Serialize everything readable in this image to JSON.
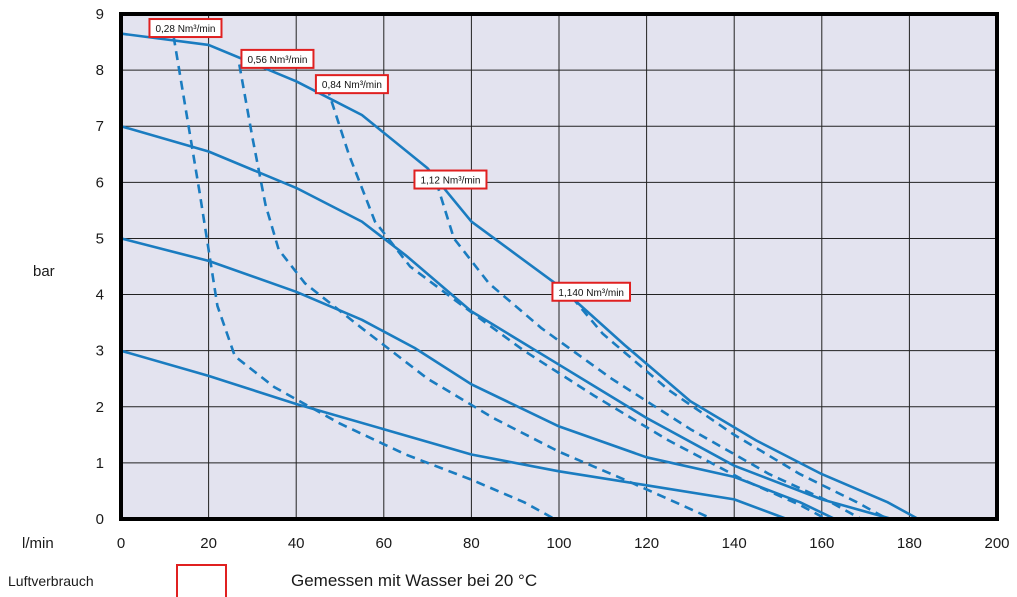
{
  "chart_data": {
    "type": "line",
    "title": "",
    "xlabel": "l/min",
    "ylabel": "bar",
    "xlim": [
      0,
      200
    ],
    "ylim": [
      0,
      9
    ],
    "xticks": [
      "0",
      "20",
      "40",
      "60",
      "80",
      "100",
      "120",
      "140",
      "160",
      "180",
      "200"
    ],
    "yticks": [
      "0",
      "1",
      "2",
      "3",
      "4",
      "5",
      "6",
      "7",
      "8",
      "9"
    ],
    "grid": true,
    "plot_background": "#e3e3ef",
    "line_color": "#1a7cc0",
    "label_border_color": "#e02020",
    "pressure_curves": [
      {
        "points": [
          [
            0,
            8.65
          ],
          [
            20,
            8.45
          ],
          [
            40,
            7.8
          ],
          [
            55,
            7.2
          ],
          [
            70,
            6.25
          ],
          [
            80,
            5.3
          ],
          [
            100,
            4.15
          ],
          [
            115,
            3.1
          ],
          [
            130,
            2.1
          ],
          [
            145,
            1.4
          ],
          [
            160,
            0.8
          ],
          [
            175,
            0.3
          ],
          [
            182,
            0
          ]
        ]
      },
      {
        "points": [
          [
            0,
            7.0
          ],
          [
            20,
            6.55
          ],
          [
            40,
            5.9
          ],
          [
            55,
            5.3
          ],
          [
            65,
            4.7
          ],
          [
            80,
            3.7
          ],
          [
            100,
            2.75
          ],
          [
            120,
            1.8
          ],
          [
            140,
            0.95
          ],
          [
            160,
            0.35
          ],
          [
            176,
            0
          ]
        ]
      },
      {
        "points": [
          [
            0,
            5.0
          ],
          [
            20,
            4.6
          ],
          [
            40,
            4.05
          ],
          [
            55,
            3.55
          ],
          [
            67,
            3.05
          ],
          [
            80,
            2.4
          ],
          [
            100,
            1.65
          ],
          [
            120,
            1.1
          ],
          [
            140,
            0.75
          ],
          [
            155,
            0.3
          ],
          [
            163,
            0
          ]
        ]
      },
      {
        "points": [
          [
            0,
            3.0
          ],
          [
            20,
            2.55
          ],
          [
            40,
            2.05
          ],
          [
            60,
            1.6
          ],
          [
            80,
            1.15
          ],
          [
            100,
            0.85
          ],
          [
            120,
            0.6
          ],
          [
            140,
            0.35
          ],
          [
            152,
            0
          ]
        ]
      }
    ],
    "air_curves": [
      {
        "label": "0,28 Nm³/min",
        "points": [
          [
            12,
            8.6
          ],
          [
            15,
            7.2
          ],
          [
            18,
            5.8
          ],
          [
            20,
            4.8
          ],
          [
            22,
            3.8
          ],
          [
            26,
            2.9
          ],
          [
            35,
            2.35
          ],
          [
            50,
            1.7
          ],
          [
            65,
            1.15
          ],
          [
            80,
            0.7
          ],
          [
            92,
            0.3
          ],
          [
            99,
            0
          ]
        ]
      },
      {
        "label": "0,56 Nm³/min",
        "points": [
          [
            27,
            8.1
          ],
          [
            30,
            6.8
          ],
          [
            33,
            5.6
          ],
          [
            36,
            4.8
          ],
          [
            42,
            4.2
          ],
          [
            55,
            3.4
          ],
          [
            70,
            2.5
          ],
          [
            85,
            1.8
          ],
          [
            100,
            1.2
          ],
          [
            115,
            0.7
          ],
          [
            128,
            0.25
          ],
          [
            135,
            0
          ]
        ]
      },
      {
        "label": "0,84 Nm³/min",
        "points": [
          [
            47,
            7.7
          ],
          [
            52,
            6.5
          ],
          [
            58,
            5.3
          ],
          [
            66,
            4.5
          ],
          [
            78,
            3.8
          ],
          [
            92,
            3.0
          ],
          [
            108,
            2.2
          ],
          [
            125,
            1.4
          ],
          [
            142,
            0.7
          ],
          [
            155,
            0.25
          ],
          [
            161,
            0
          ]
        ]
      },
      {
        "label": "1,12 Nm³/min",
        "points": [
          [
            72,
            6.0
          ],
          [
            76,
            5.0
          ],
          [
            84,
            4.2
          ],
          [
            96,
            3.4
          ],
          [
            112,
            2.5
          ],
          [
            130,
            1.6
          ],
          [
            148,
            0.8
          ],
          [
            162,
            0.3
          ],
          [
            169,
            0
          ]
        ]
      },
      {
        "label": "1,140 Nm³/min",
        "points": [
          [
            103,
            3.95
          ],
          [
            110,
            3.3
          ],
          [
            125,
            2.3
          ],
          [
            140,
            1.5
          ],
          [
            155,
            0.8
          ],
          [
            168,
            0.3
          ],
          [
            175,
            0
          ]
        ]
      }
    ],
    "flow_label_anchors": [
      [
        6.5,
        8.75
      ],
      [
        27.5,
        8.2
      ],
      [
        44.5,
        7.75
      ],
      [
        67,
        6.05
      ],
      [
        98.5,
        4.05
      ]
    ]
  },
  "legend": {
    "label": "Luftverbrauch"
  },
  "note": "Gemessen mit Wasser bei 20 °C"
}
